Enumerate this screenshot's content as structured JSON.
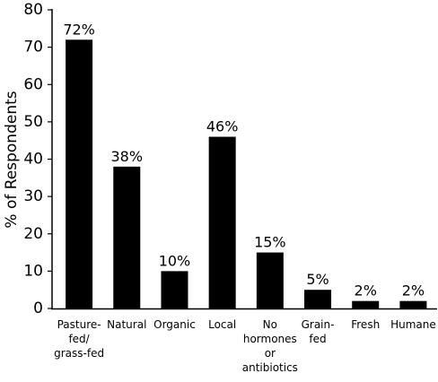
{
  "chart_data": {
    "type": "bar",
    "y_axis_label": "% of Respondents",
    "categories": [
      "Pasture-\nfed/\ngrass-fed",
      "Natural",
      "Organic",
      "Local",
      "No\nhormones\nor\nantibiotics",
      "Grain-\nfed",
      "Fresh",
      "Humane"
    ],
    "values": [
      72,
      38,
      10,
      46,
      15,
      5,
      2,
      2
    ],
    "value_labels": [
      "72%",
      "38%",
      "10%",
      "46%",
      "15%",
      "5%",
      "2%",
      "2%"
    ],
    "color": "#000000",
    "ylim": [
      0,
      80
    ],
    "yticks": [
      0,
      10,
      20,
      30,
      40,
      50,
      60,
      70,
      80
    ],
    "grid": false
  }
}
